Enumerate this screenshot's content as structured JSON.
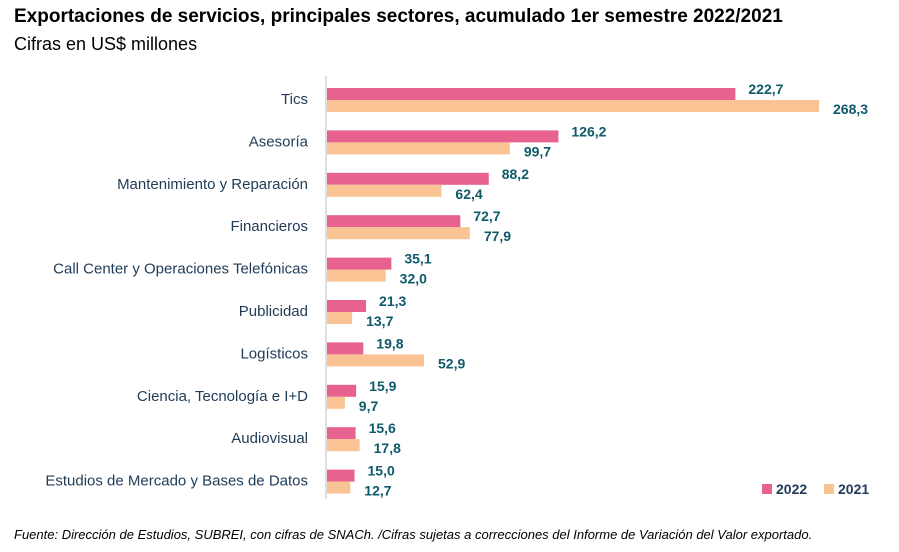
{
  "title": "Exportaciones de servicios, principales sectores, acumulado 1er semestre 2022/2021",
  "subtitle": "Cifras en US$ millones",
  "source": "Fuente: Dirección de Estudios, SUBREI, con cifras de SNACh. /Cifras sujetas a correcciones del Informe de Variación del Valor exportado.",
  "colors": {
    "series_2022": "#e8628f",
    "series_2021": "#f9c393",
    "value_labels": "#0e5a6a",
    "category_labels": "#1f3b57",
    "axis": "#bfbfbf"
  },
  "chart_data": {
    "type": "bar",
    "orientation": "horizontal",
    "categories": [
      "Tics",
      "Asesoría",
      "Mantenimiento y Reparación",
      "Financieros",
      "Call Center y Operaciones Telefónicas",
      "Publicidad",
      "Logísticos",
      "Ciencia, Tecnología e I+D",
      "Audiovisual",
      "Estudios de Mercado y Bases de Datos"
    ],
    "series": [
      {
        "name": "2022",
        "values": [
          222.7,
          126.2,
          88.2,
          72.7,
          35.1,
          21.3,
          19.8,
          15.9,
          15.6,
          15.0
        ],
        "labels": [
          "222,7",
          "126,2",
          "88,2",
          "72,7",
          "35,1",
          "21,3",
          "19,8",
          "15,9",
          "15,6",
          "15,0"
        ]
      },
      {
        "name": "2021",
        "values": [
          268.3,
          99.7,
          62.4,
          77.9,
          32.0,
          13.7,
          52.9,
          9.7,
          17.8,
          12.7
        ],
        "labels": [
          "268,3",
          "99,7",
          "62,4",
          "77,9",
          "32,0",
          "13,7",
          "52,9",
          "9,7",
          "17,8",
          "12,7"
        ]
      }
    ],
    "xlim": [
      0,
      268.3
    ],
    "grid": false,
    "legend_position": "bottom-right"
  }
}
